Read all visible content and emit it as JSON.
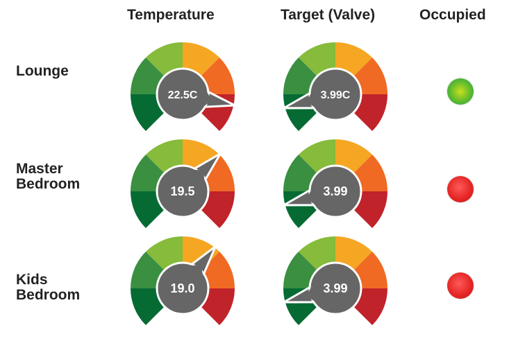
{
  "headers": {
    "temperature": "Temperature",
    "target": "Target (Valve)",
    "occupied": "Occupied"
  },
  "colors": {
    "dark_green": "#056b33",
    "green": "#3a8f41",
    "light_green": "#86bb3b",
    "yellow": "#f5a623",
    "orange": "#f06a23",
    "red": "#c0232a",
    "hub": "#666666",
    "occupied_on": "#2eb84a",
    "occupied_off": "#e02626"
  },
  "rooms": [
    {
      "name_lines": [
        "Lounge"
      ],
      "temperature": {
        "label": "22.5C",
        "needle_angle_deg": 102
      },
      "target": {
        "label": "3.99C",
        "needle_angle_deg": 255
      },
      "occupied": true
    },
    {
      "name_lines": [
        "Master",
        "Bedroom"
      ],
      "temperature": {
        "label": "19.5",
        "needle_angle_deg": 45
      },
      "target": {
        "label": "3.99",
        "needle_angle_deg": 255
      },
      "occupied": false
    },
    {
      "name_lines": [
        "Kids",
        "Bedroom"
      ],
      "temperature": {
        "label": "19.0",
        "needle_angle_deg": 38
      },
      "target": {
        "label": "3.99",
        "needle_angle_deg": 255
      },
      "occupied": false
    }
  ]
}
